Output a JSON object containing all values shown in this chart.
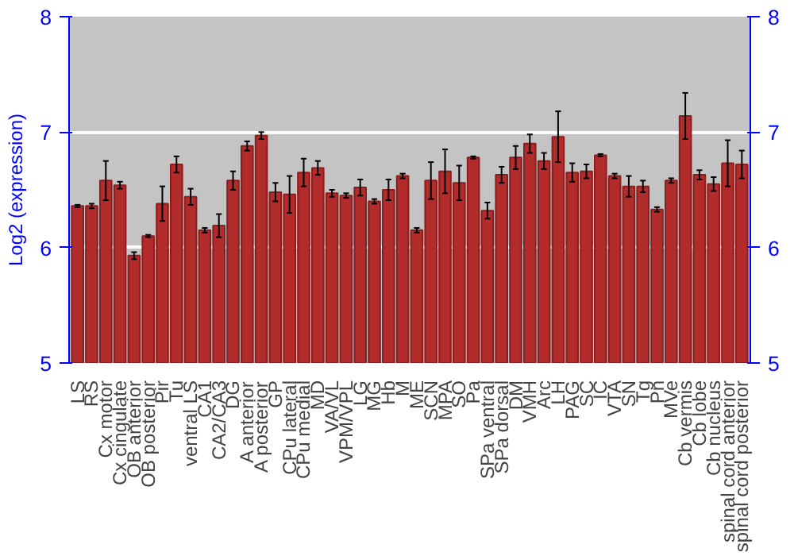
{
  "chart_data": {
    "type": "bar",
    "ylabel": "Log2 (expression)",
    "categories": [
      "LS",
      "RS",
      "Cx motor",
      "Cx cingulate",
      "OB anterior",
      "OB posterior",
      "Pir",
      "Tu",
      "ventral LS",
      "CA1",
      "CA2/CA3",
      "DG",
      "A anterior",
      "A posterior",
      "GP",
      "CPu lateral",
      "CPu medial",
      "MD",
      "VA/VL",
      "VPM/VPL",
      "LG",
      "MG",
      "Hb",
      "M",
      "ME",
      "SCN",
      "MPA",
      "SO",
      "Pa",
      "SPa ventral",
      "SPa dorsal",
      "DM",
      "VMH",
      "Arc",
      "LH",
      "PAG",
      "SC",
      "IC",
      "VTA",
      "SN",
      "Tg",
      "Pn",
      "MVe",
      "Cb vermis",
      "Cb lobe",
      "Cb nucleus",
      "spinal cord anterior",
      "spinal cord posterior"
    ],
    "values": [
      6.36,
      6.36,
      6.58,
      6.54,
      5.93,
      6.1,
      6.38,
      6.72,
      6.44,
      6.15,
      6.19,
      6.58,
      6.88,
      6.97,
      6.48,
      6.46,
      6.65,
      6.69,
      6.47,
      6.45,
      6.52,
      6.4,
      6.5,
      6.62,
      6.15,
      6.58,
      6.66,
      6.56,
      6.78,
      6.32,
      6.63,
      6.78,
      6.9,
      6.75,
      6.96,
      6.65,
      6.66,
      6.8,
      6.62,
      6.53,
      6.53,
      6.33,
      6.58,
      7.14,
      6.63,
      6.55,
      6.73,
      6.72
    ],
    "errors": [
      0.01,
      0.02,
      0.17,
      0.03,
      0.03,
      0.01,
      0.15,
      0.07,
      0.07,
      0.02,
      0.1,
      0.08,
      0.04,
      0.03,
      0.08,
      0.16,
      0.12,
      0.06,
      0.03,
      0.02,
      0.07,
      0.02,
      0.09,
      0.02,
      0.02,
      0.16,
      0.19,
      0.15,
      0.01,
      0.07,
      0.07,
      0.1,
      0.08,
      0.07,
      0.22,
      0.08,
      0.06,
      0.01,
      0.02,
      0.09,
      0.05,
      0.02,
      0.02,
      0.2,
      0.04,
      0.06,
      0.2,
      0.12
    ],
    "color": "#b22c2c",
    "ylim": [
      5,
      8
    ],
    "yticks": [
      5,
      6,
      7,
      8
    ],
    "y2lim": [
      5,
      8
    ],
    "y2ticks": [
      5,
      6,
      7,
      8
    ],
    "grid": "y"
  }
}
